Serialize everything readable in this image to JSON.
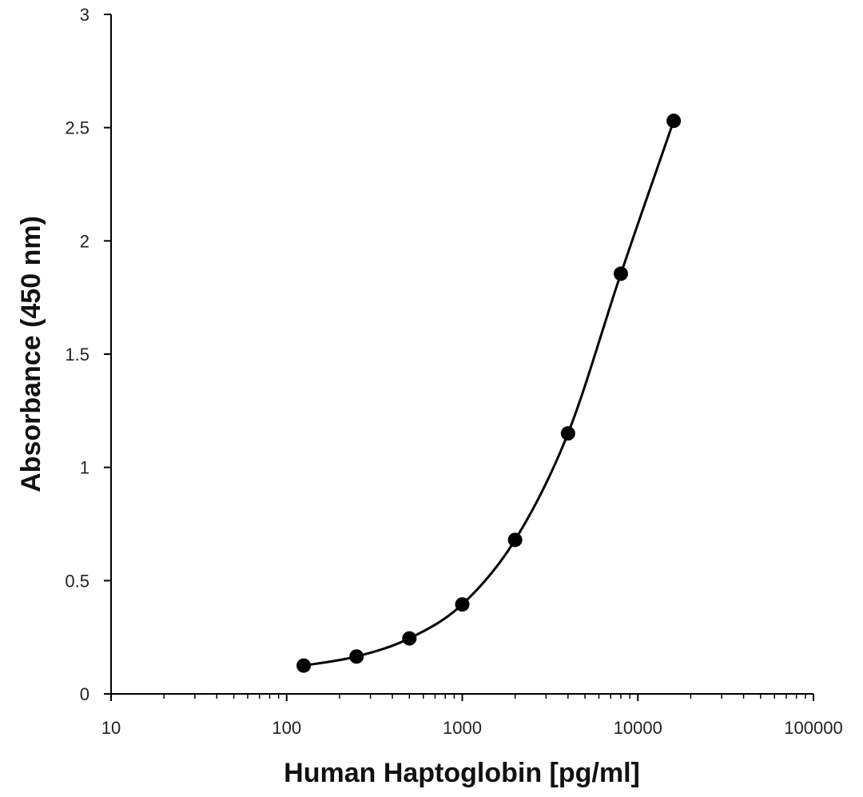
{
  "chart_data": {
    "type": "scatter",
    "title": "",
    "xlabel": "Human Haptoglobin [pg/ml]",
    "ylabel": "Absorbance (450 nm)",
    "x_scale": "log",
    "xlim": [
      10,
      100000
    ],
    "ylim": [
      0,
      3
    ],
    "x_ticks": [
      10,
      100,
      1000,
      10000,
      100000
    ],
    "x_tick_labels": [
      "10",
      "100",
      "1000",
      "10000",
      "100000"
    ],
    "y_ticks": [
      0,
      0.5,
      1,
      1.5,
      2,
      2.5,
      3
    ],
    "y_tick_labels": [
      "0",
      "0.5",
      "1",
      "1.5",
      "2",
      "2.5",
      "3"
    ],
    "grid": false,
    "legend": "none",
    "colors": {
      "series": "#000000",
      "axis": "#000000"
    },
    "series": [
      {
        "x": [
          125,
          250,
          500,
          1000,
          2000,
          4000,
          8000,
          16000
        ],
        "y": [
          0.125,
          0.165,
          0.245,
          0.395,
          0.68,
          1.15,
          1.855,
          2.53
        ],
        "marker": "filled-circle",
        "line": "smooth"
      }
    ]
  }
}
